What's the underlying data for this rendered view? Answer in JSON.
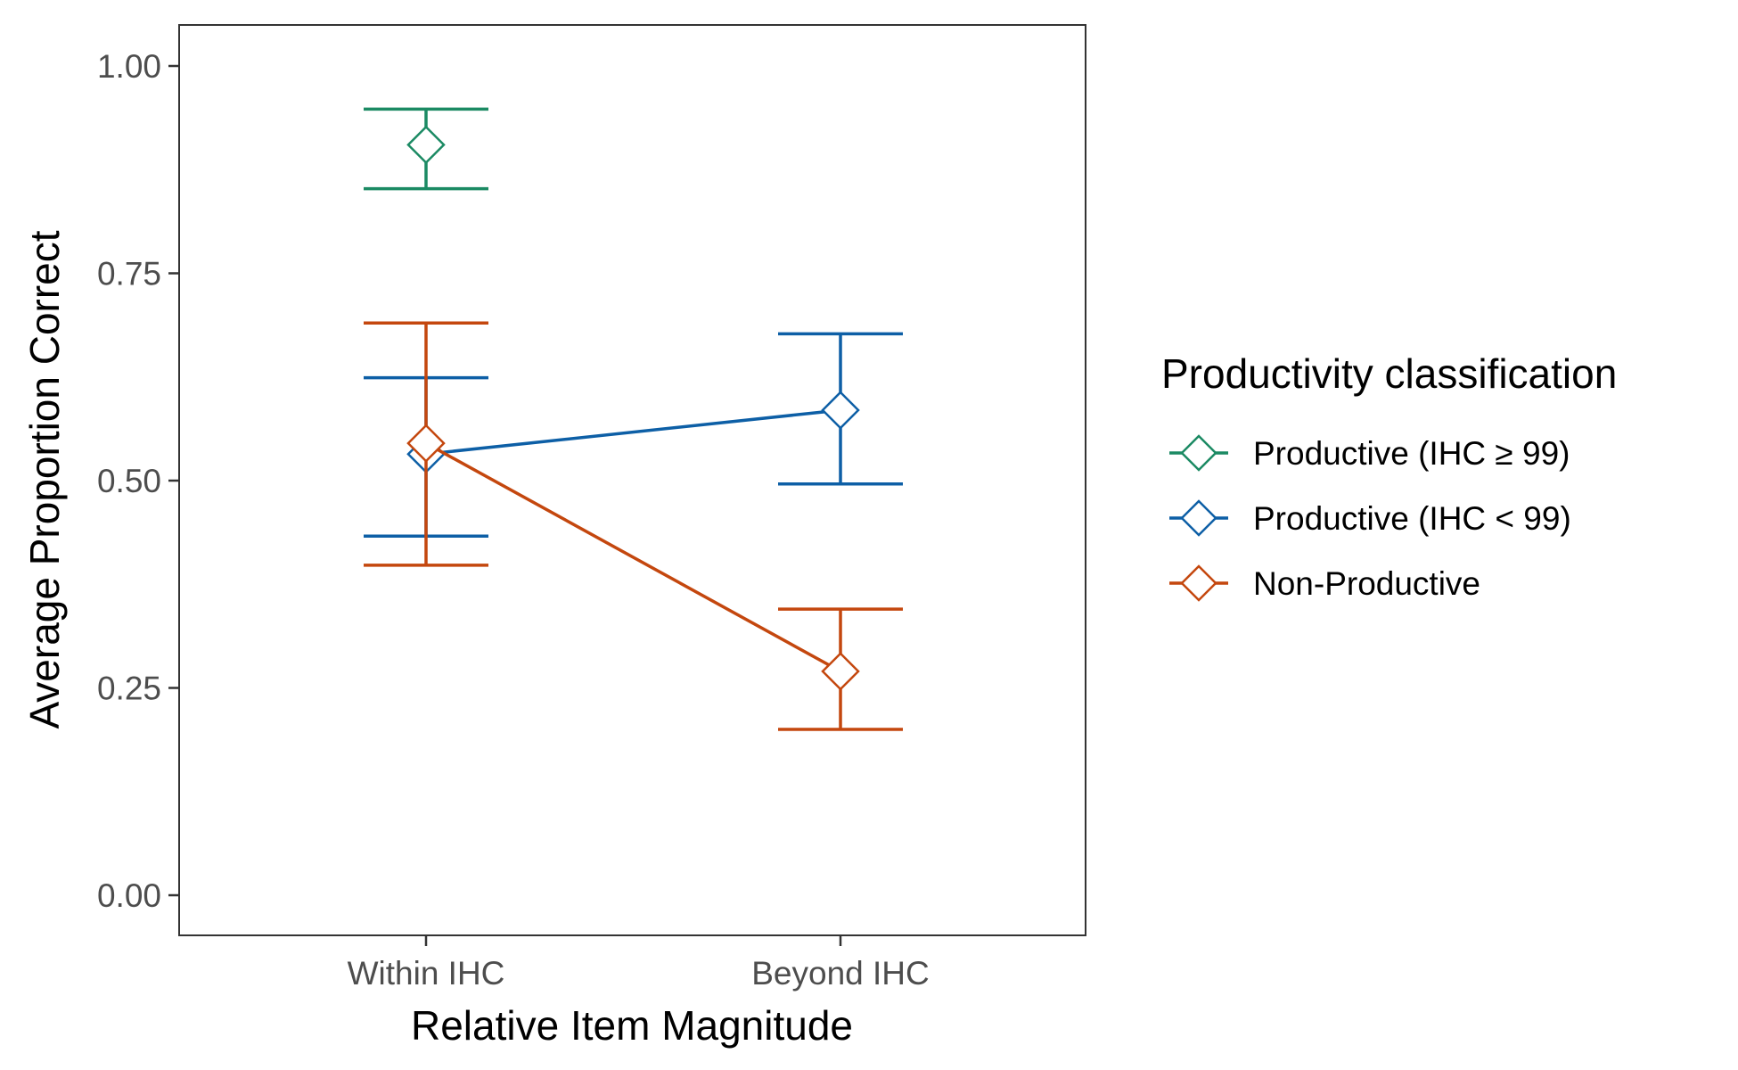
{
  "chart_data": {
    "type": "line",
    "title": "",
    "xlabel": "Relative Item Magnitude",
    "ylabel": "Average Proportion Correct",
    "categories": [
      "Within IHC",
      "Beyond IHC"
    ],
    "ylim": [
      0,
      1
    ],
    "yticks": [
      "0.00",
      "0.25",
      "0.50",
      "0.75",
      "1.00"
    ],
    "ytick_values": [
      0,
      0.25,
      0.5,
      0.75,
      1.0
    ],
    "grid": false,
    "legend": {
      "title": "Productivity classification",
      "placement": "right"
    },
    "series": [
      {
        "name": "Productive (IHC ≥ 99)",
        "color": "#1b8a63",
        "values": [
          0.905,
          null
        ],
        "lower": [
          0.852,
          null
        ],
        "upper": [
          0.948,
          null
        ]
      },
      {
        "name": "Productive (IHC < 99)",
        "color": "#0d5fa6",
        "values": [
          0.532,
          0.585
        ],
        "lower": [
          0.433,
          0.496
        ],
        "upper": [
          0.624,
          0.677
        ]
      },
      {
        "name": "Non-Productive",
        "color": "#c4470e",
        "values": [
          0.545,
          0.27
        ],
        "lower": [
          0.398,
          0.2
        ],
        "upper": [
          0.69,
          0.345
        ]
      }
    ]
  }
}
